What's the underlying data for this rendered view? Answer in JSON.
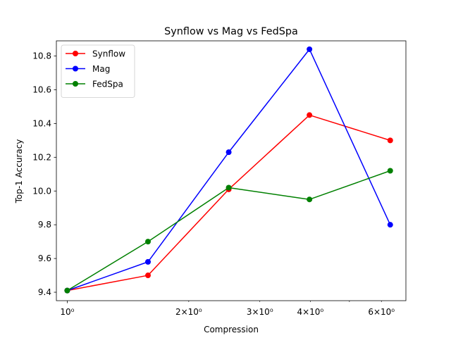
{
  "chart_data": {
    "type": "line",
    "title": "Synflow vs Mag vs FedSpa",
    "xlabel": "Compression",
    "ylabel": "Top-1 Accuracy",
    "x_scale": "log",
    "x": [
      1.0,
      1.585,
      2.512,
      3.981,
      6.31
    ],
    "xlim": [
      0.94,
      6.9
    ],
    "ylim": [
      9.35,
      10.89
    ],
    "x_major_ticks": [
      {
        "value": 1,
        "label": "10⁰"
      }
    ],
    "x_minor_ticks": [
      {
        "value": 2,
        "label": "2×10⁰"
      },
      {
        "value": 3,
        "label": "3×10⁰"
      },
      {
        "value": 4,
        "label": "4×10⁰"
      },
      {
        "value": 5,
        "label": ""
      },
      {
        "value": 6,
        "label": "6×10⁰"
      }
    ],
    "y_ticks": [
      {
        "value": 9.4,
        "label": "9.4"
      },
      {
        "value": 9.6,
        "label": "9.6"
      },
      {
        "value": 9.8,
        "label": "9.8"
      },
      {
        "value": 10.0,
        "label": "10.0"
      },
      {
        "value": 10.2,
        "label": "10.2"
      },
      {
        "value": 10.4,
        "label": "10.4"
      },
      {
        "value": 10.6,
        "label": "10.6"
      },
      {
        "value": 10.8,
        "label": "10.8"
      }
    ],
    "grid": false,
    "legend_position": "top-left",
    "series": [
      {
        "name": "Synflow",
        "color": "#ff0000",
        "values": [
          9.41,
          9.5,
          10.01,
          10.45,
          10.3
        ]
      },
      {
        "name": "Mag",
        "color": "#0000ff",
        "values": [
          9.41,
          9.58,
          10.23,
          10.84,
          9.8
        ]
      },
      {
        "name": "FedSpa",
        "color": "#008000",
        "values": [
          9.41,
          9.7,
          10.02,
          9.95,
          10.12
        ]
      }
    ]
  }
}
